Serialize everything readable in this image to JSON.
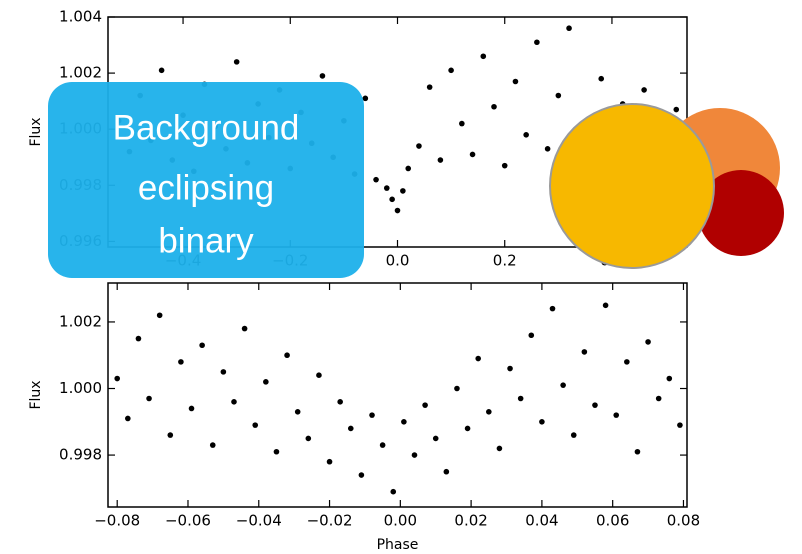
{
  "chart_data": [
    {
      "type": "scatter",
      "ylabel": "Flux",
      "color": "#000000",
      "xlim": [
        -0.54,
        0.54
      ],
      "ylim": [
        0.9958,
        1.004
      ],
      "xticks": [
        {
          "value": -0.4,
          "label": "−0.4"
        },
        {
          "value": -0.2,
          "label": "−0.2"
        },
        {
          "value": 0,
          "label": "0.0"
        },
        0.2,
        0.4
      ],
      "yticks": [
        0.996,
        0.998,
        {
          "value": 1,
          "label": "1.000"
        },
        1.002,
        1.004
      ],
      "x": [
        -0.52,
        -0.5,
        -0.48,
        -0.46,
        -0.44,
        -0.42,
        -0.4,
        -0.38,
        -0.36,
        -0.34,
        -0.32,
        -0.3,
        -0.28,
        -0.26,
        -0.24,
        -0.22,
        -0.2,
        -0.18,
        -0.16,
        -0.14,
        -0.12,
        -0.1,
        -0.08,
        -0.06,
        -0.04,
        -0.02,
        -0.01,
        0,
        0.01,
        0.02,
        0.04,
        0.06,
        0.08,
        0.1,
        0.12,
        0.14,
        0.16,
        0.18,
        0.2,
        0.22,
        0.24,
        0.26,
        0.28,
        0.3,
        0.32,
        0.34,
        0.36,
        0.38,
        0.4,
        0.42,
        0.44,
        0.46,
        0.48,
        0.5,
        0.52
      ],
      "values": [
        1.0003,
        0.9992,
        1.0012,
        0.9996,
        1.0021,
        0.9989,
        1.0005,
        0.9985,
        1.0016,
        1.0001,
        0.9993,
        1.0024,
        0.9988,
        1.0009,
        0.9997,
        1.0014,
        0.9986,
        1.0006,
        0.9995,
        1.0019,
        0.999,
        1.0003,
        0.9984,
        1.0011,
        0.9982,
        0.9979,
        0.9975,
        0.9971,
        0.9978,
        0.9986,
        0.9994,
        1.0015,
        0.9989,
        1.0021,
        1.0002,
        0.9991,
        1.0026,
        1.0008,
        0.9987,
        1.0017,
        0.9998,
        1.0031,
        0.9993,
        1.0012,
        1.0036,
        0.999,
        1.0004,
        1.0018,
        0.9995,
        1.0009,
        0.9988,
        1.0014,
        1,
        0.9992,
        1.0007
      ]
    },
    {
      "type": "scatter",
      "ylabel": "Flux",
      "xlabel": "Phase",
      "color": "#000000",
      "xlim": [
        -0.0826,
        0.081
      ],
      "ylim": [
        0.99644,
        1.00317
      ],
      "xticks": [
        {
          "value": -0.08,
          "label": "−0.08"
        },
        {
          "value": -0.06,
          "label": "−0.06"
        },
        {
          "value": -0.04,
          "label": "−0.04"
        },
        {
          "value": -0.02,
          "label": "−0.02"
        },
        {
          "value": 0,
          "label": "0.00"
        },
        0.02,
        0.04,
        0.06,
        0.08
      ],
      "yticks": [
        0.998,
        {
          "value": 1,
          "label": "1.000"
        },
        1.002
      ],
      "x": [
        -0.08,
        -0.077,
        -0.074,
        -0.071,
        -0.068,
        -0.065,
        -0.062,
        -0.059,
        -0.056,
        -0.053,
        -0.05,
        -0.047,
        -0.044,
        -0.041,
        -0.038,
        -0.035,
        -0.032,
        -0.029,
        -0.026,
        -0.023,
        -0.02,
        -0.017,
        -0.014,
        -0.011,
        -0.008,
        -0.005,
        -0.002,
        0.001,
        0.004,
        0.007,
        0.01,
        0.013,
        0.016,
        0.019,
        0.022,
        0.025,
        0.028,
        0.031,
        0.034,
        0.037,
        0.04,
        0.043,
        0.046,
        0.049,
        0.052,
        0.055,
        0.058,
        0.061,
        0.064,
        0.067,
        0.07,
        0.073,
        0.076,
        0.079
      ],
      "values": [
        1.0003,
        0.9991,
        1.0015,
        0.9997,
        1.0022,
        0.9986,
        1.0008,
        0.9994,
        1.0013,
        0.9983,
        1.0005,
        0.9996,
        1.0018,
        0.9989,
        1.0002,
        0.9981,
        1.001,
        0.9993,
        0.9985,
        1.0004,
        0.9978,
        0.9996,
        0.9988,
        0.9974,
        0.9992,
        0.9983,
        0.9969,
        0.999,
        0.998,
        0.9995,
        0.9985,
        0.9975,
        1,
        0.9988,
        1.0009,
        0.9993,
        0.9982,
        1.0006,
        0.9997,
        1.0016,
        0.999,
        1.0024,
        1.0001,
        0.9986,
        1.0011,
        0.9995,
        1.0025,
        0.9992,
        1.0008,
        0.9981,
        1.0014,
        0.9997,
        1.0003,
        0.9989
      ]
    }
  ],
  "overlay": {
    "lines": [
      "Background",
      "eclipsing",
      "binary"
    ]
  }
}
